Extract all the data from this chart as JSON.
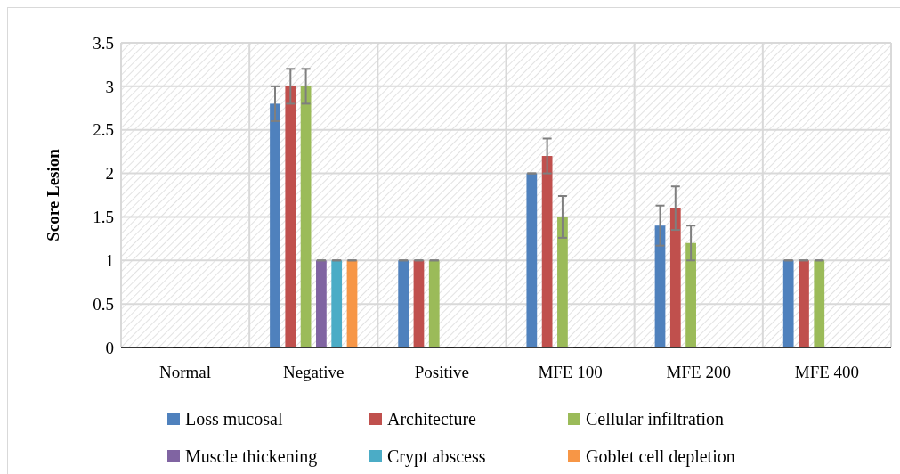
{
  "chart_data": {
    "type": "bar",
    "ylabel": "Score Lesion",
    "categories": [
      "Normal",
      "Negative",
      "Positive",
      "MFE 100",
      "MFE 200",
      "MFE 400"
    ],
    "series": [
      {
        "name": "Loss mucosal",
        "color": "#4f81bd",
        "values": [
          0,
          2.8,
          1,
          2,
          1.4,
          1
        ],
        "errors": [
          0,
          0.2,
          0,
          0,
          0.23,
          0
        ]
      },
      {
        "name": "Architecture",
        "color": "#c0504d",
        "values": [
          0,
          3,
          1,
          2.2,
          1.6,
          1
        ],
        "errors": [
          0,
          0.2,
          0,
          0.2,
          0.25,
          0
        ]
      },
      {
        "name": "Cellular infiltration",
        "color": "#9bbb59",
        "values": [
          0,
          3,
          1,
          1.5,
          1.2,
          1
        ],
        "errors": [
          0,
          0.2,
          0,
          0.24,
          0.2,
          0
        ]
      },
      {
        "name": "Muscle thickening",
        "color": "#8064a2",
        "values": [
          0,
          1,
          0,
          0,
          0,
          0
        ],
        "errors": [
          0,
          0,
          0,
          0,
          0,
          0
        ]
      },
      {
        "name": "Crypt abscess",
        "color": "#4bacc6",
        "values": [
          0,
          1,
          0,
          0,
          0,
          0
        ],
        "errors": [
          0,
          0,
          0,
          0,
          0,
          0
        ]
      },
      {
        "name": "Goblet cell depletion",
        "color": "#f79646",
        "values": [
          0,
          1,
          0,
          0,
          0,
          0
        ],
        "errors": [
          0,
          0,
          0,
          0,
          0,
          0
        ]
      }
    ],
    "ylim": [
      0,
      3.5
    ],
    "yticks": [
      0,
      0.5,
      1,
      1.5,
      2,
      2.5,
      3,
      3.5
    ],
    "grid": true,
    "legend": "bottom"
  }
}
